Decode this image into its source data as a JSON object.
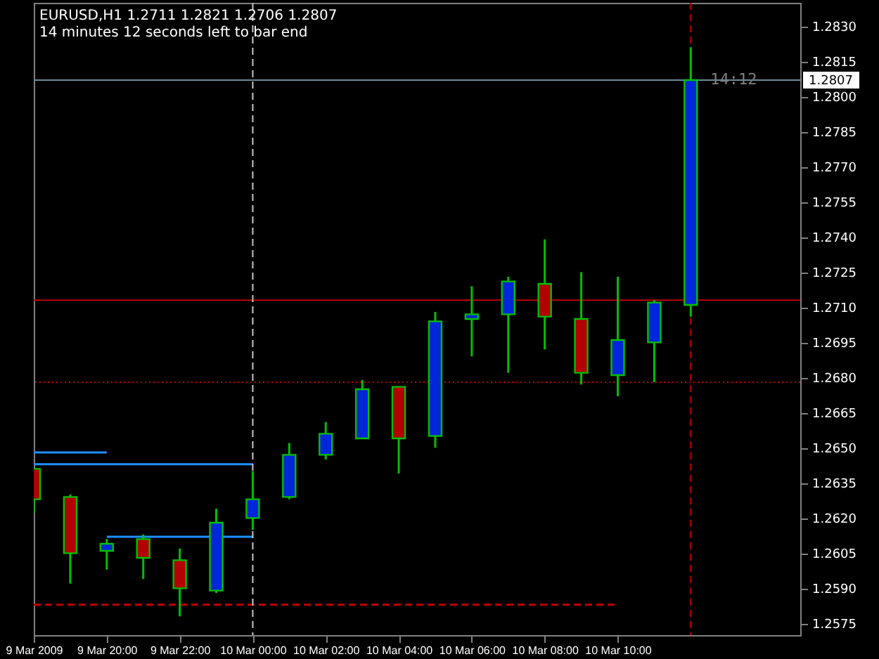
{
  "chart_data": {
    "type": "candlestick",
    "title": "EURUSD,H1  1.2711 1.2821 1.2706 1.2807",
    "subtitle": "14 minutes 12 seconds left to bar end",
    "x": [
      "2009-03-09T18:00",
      "2009-03-09T19:00",
      "2009-03-09T20:00",
      "2009-03-09T21:00",
      "2009-03-09T22:00",
      "2009-03-09T23:00",
      "2009-03-10T00:00",
      "2009-03-10T01:00",
      "2009-03-10T02:00",
      "2009-03-10T03:00",
      "2009-03-10T04:00",
      "2009-03-10T05:00",
      "2009-03-10T06:00",
      "2009-03-10T07:00",
      "2009-03-10T08:00",
      "2009-03-10T09:00",
      "2009-03-10T10:00",
      "2009-03-10T11:00",
      "2009-03-10T12:00"
    ],
    "ohlc": [
      [
        1.2641,
        1.2641,
        1.2622,
        1.2628
      ],
      [
        1.2629,
        1.263,
        1.2592,
        1.2605
      ],
      [
        1.2606,
        1.2611,
        1.2598,
        1.2609
      ],
      [
        1.2611,
        1.2613,
        1.2594,
        1.2603
      ],
      [
        1.2602,
        1.2607,
        1.2578,
        1.259
      ],
      [
        1.2589,
        1.2624,
        1.2588,
        1.2618
      ],
      [
        1.262,
        1.264,
        1.2615,
        1.2628
      ],
      [
        1.2629,
        1.2652,
        1.2628,
        1.2647
      ],
      [
        1.2647,
        1.2661,
        1.2645,
        1.2656
      ],
      [
        1.2654,
        1.2679,
        1.2654,
        1.2675
      ],
      [
        1.2676,
        1.2676,
        1.2639,
        1.2654
      ],
      [
        1.2655,
        1.2708,
        1.265,
        1.2704
      ],
      [
        1.2705,
        1.2719,
        1.2689,
        1.2707
      ],
      [
        1.2707,
        1.2723,
        1.2682,
        1.2721
      ],
      [
        1.272,
        1.2739,
        1.2692,
        1.2706
      ],
      [
        1.2705,
        1.2725,
        1.2677,
        1.2682
      ],
      [
        1.2681,
        1.2723,
        1.2672,
        1.2696
      ],
      [
        1.2695,
        1.2713,
        1.2678,
        1.2712
      ],
      [
        1.2711,
        1.2821,
        1.2706,
        1.2807
      ]
    ],
    "color": "#00c000",
    "colors": [
      "#b30000",
      "#b30000",
      "#0026d9",
      "#b30000",
      "#b30000",
      "#0026d9",
      "#0026d9",
      "#0026d9",
      "#0026d9",
      "#0026d9",
      "#b30000",
      "#0026d9",
      "#0026d9",
      "#0026d9",
      "#b30000",
      "#b30000",
      "#0026d9",
      "#0026d9",
      "#0026d9"
    ],
    "series": [
      {
        "type": "line",
        "color": "#1e90ff",
        "line_style": "solid",
        "x": [
          "2009-03-09T18:00",
          "2009-03-09T20:00"
        ],
        "values": [
          1.2648,
          1.2648
        ]
      },
      {
        "type": "line",
        "color": "#1e90ff",
        "line_style": "solid",
        "x": [
          "2009-03-09T18:00",
          "2009-03-10T00:00"
        ],
        "values": [
          1.2643,
          1.2643
        ]
      },
      {
        "type": "line",
        "color": "#1e90ff",
        "line_style": "solid",
        "x": [
          "2009-03-09T20:00",
          "2009-03-10T00:00"
        ],
        "values": [
          1.2612,
          1.2612
        ]
      },
      {
        "type": "line",
        "color": "#c00000",
        "line_style": "dashed",
        "x": [
          "2009-03-09T18:00",
          "2009-03-10T10:00"
        ],
        "values": [
          1.2583,
          1.2583
        ]
      }
    ],
    "ref_lines": [
      {
        "axis": "y",
        "value": 1.2807,
        "label": "1.2807",
        "color": "#6e8a96",
        "line_style": "solid"
      },
      {
        "axis": "y",
        "value": 1.2713,
        "color": "#c00000",
        "line_style": "solid"
      },
      {
        "axis": "y",
        "value": 1.2678,
        "color": "#c00000",
        "line_style": "dotted"
      },
      {
        "axis": "x",
        "value": "2009-03-10T00:00",
        "color": "#c8c8c8",
        "line_style": "dashed"
      },
      {
        "axis": "x",
        "value": "2009-03-10T12:00",
        "color": "#c00000",
        "line_style": "dashed"
      }
    ],
    "annotations": [
      {
        "text": "14:12",
        "x": "2009-03-10T12:00",
        "y": 1.2807
      }
    ],
    "xlim": [
      "2009-03-09T18:00",
      "2009-03-10T15:00"
    ],
    "xticks": [
      {
        "value": "2009-03-09T18:00",
        "label": "9 Mar 2009"
      },
      {
        "value": "2009-03-09T20:00",
        "label": "9 Mar 20:00"
      },
      {
        "value": "2009-03-09T22:00",
        "label": "9 Mar 22:00"
      },
      {
        "value": "2009-03-10T00:00",
        "label": "10 Mar 00:00"
      },
      {
        "value": "2009-03-10T02:00",
        "label": "10 Mar 02:00"
      },
      {
        "value": "2009-03-10T04:00",
        "label": "10 Mar 04:00"
      },
      {
        "value": "2009-03-10T06:00",
        "label": "10 Mar 06:00"
      },
      {
        "value": "2009-03-10T08:00",
        "label": "10 Mar 08:00"
      },
      {
        "value": "2009-03-10T10:00",
        "label": "10 Mar 10:00"
      }
    ],
    "ylim": [
      1.257,
      1.284
    ],
    "yticks": [
      1.2575,
      {
        "value": 1.259,
        "label": "1.2590"
      },
      1.2605,
      {
        "value": 1.262,
        "label": "1.2620"
      },
      1.2635,
      {
        "value": 1.265,
        "label": "1.2650"
      },
      1.2665,
      {
        "value": 1.268,
        "label": "1.2680"
      },
      1.2695,
      {
        "value": 1.271,
        "label": "1.2710"
      },
      1.2725,
      {
        "value": 1.274,
        "label": "1.2740"
      },
      1.2755,
      {
        "value": 1.277,
        "label": "1.2770"
      },
      1.2785,
      {
        "value": 1.28,
        "label": "1.2800"
      },
      1.2815,
      {
        "value": 1.283,
        "label": "1.2830"
      }
    ]
  }
}
